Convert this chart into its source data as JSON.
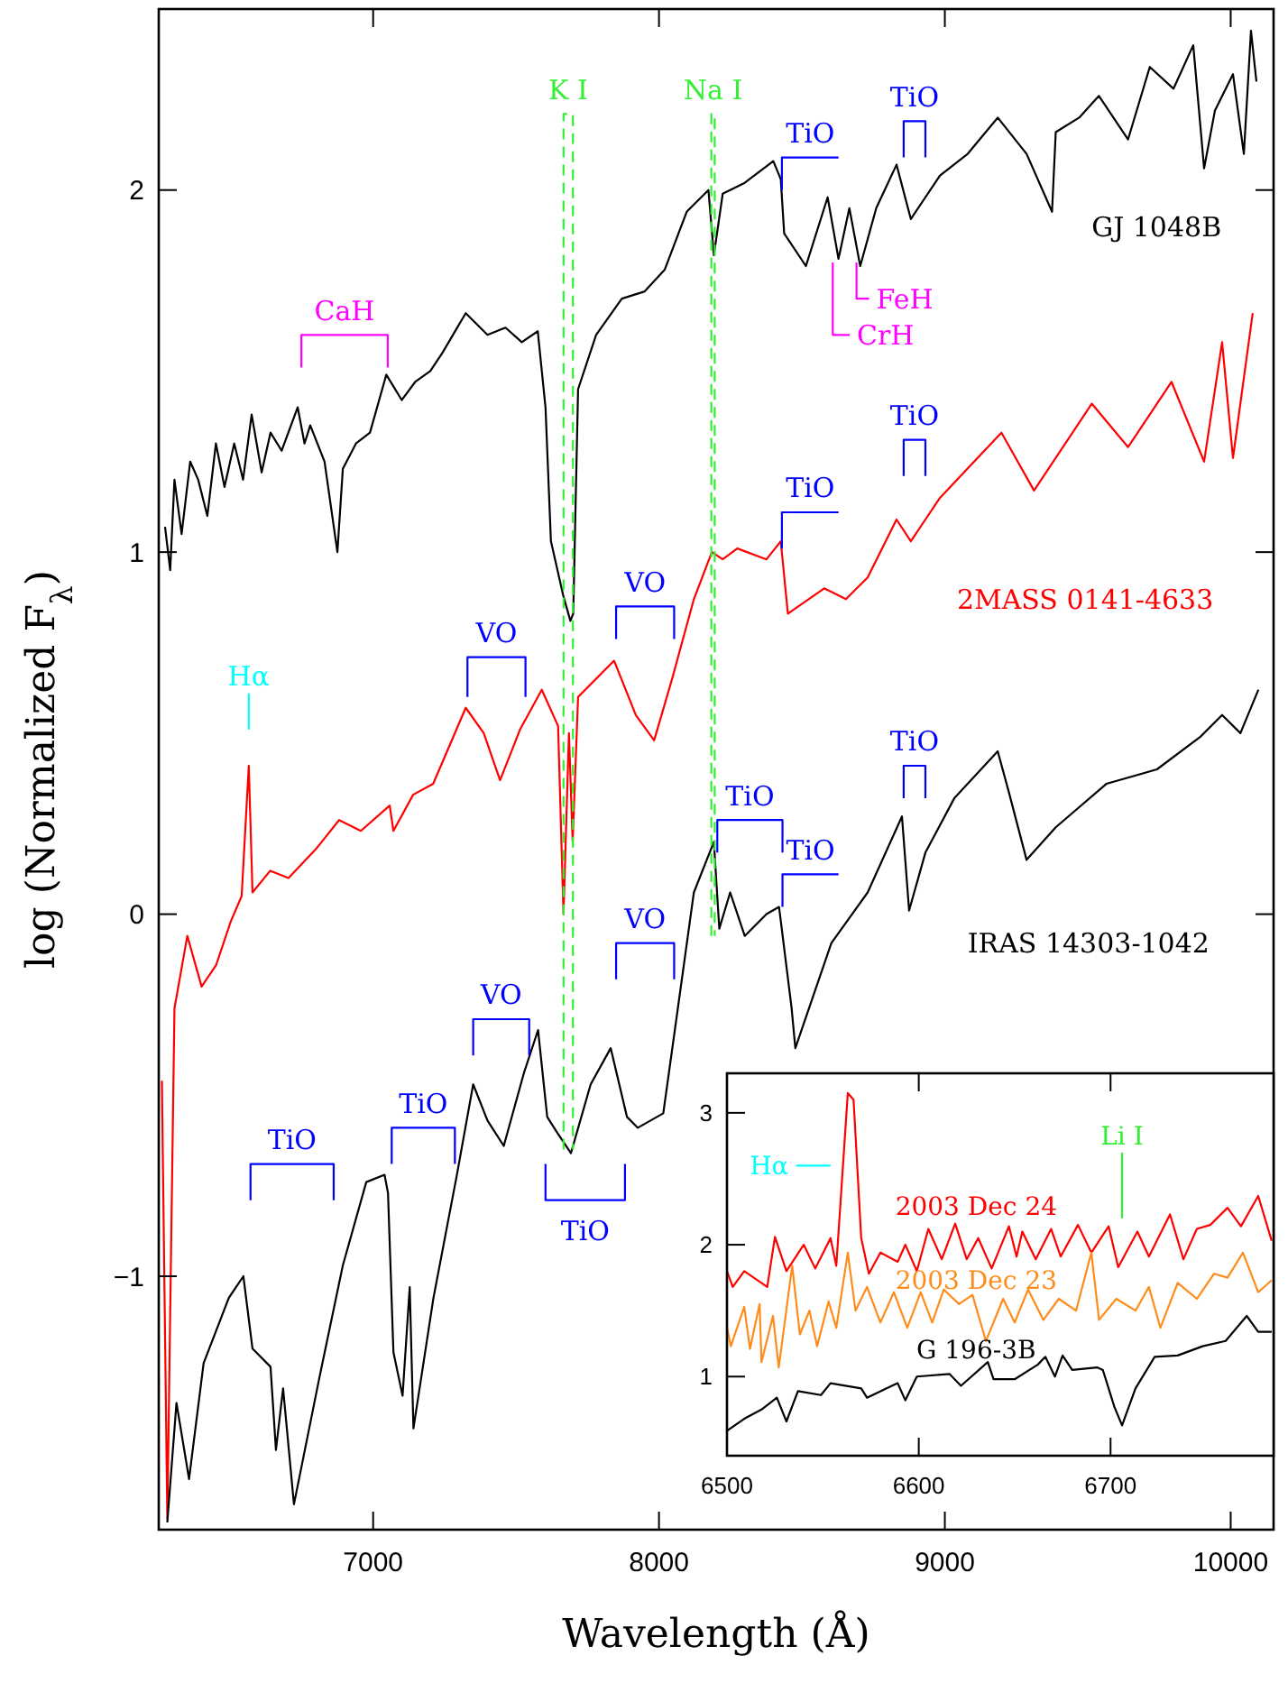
{
  "chart_data": [
    {
      "type": "line",
      "xlabel": "Wavelength (Å)",
      "ylabel": "log (Normalized F$_{λ}$)",
      "xlim": [
        6250,
        10150
      ],
      "ylim": [
        -1.7,
        2.5
      ],
      "xticks": [
        7000,
        8000,
        9000,
        10000
      ],
      "yticks": [
        -1,
        0,
        1,
        2
      ],
      "series": [
        {
          "name": "GJ 1048B",
          "color": "#000000",
          "x": [
            6272,
            6290,
            6305,
            6330,
            6360,
            6388,
            6420,
            6450,
            6480,
            6514,
            6545,
            6575,
            6610,
            6641,
            6680,
            6736,
            6760,
            6780,
            6830,
            6875,
            6894,
            6940,
            6989,
            7046,
            7100,
            7147,
            7200,
            7242,
            7324,
            7400,
            7463,
            7520,
            7576,
            7603,
            7622,
            7645,
            7665,
            7690,
            7700,
            7717,
            7780,
            7870,
            7950,
            8020,
            8097,
            8173,
            8192,
            8223,
            8300,
            8400,
            8426,
            8438,
            8514,
            8590,
            8628,
            8666,
            8704,
            8760,
            8831,
            8881,
            8983,
            9080,
            9185,
            9286,
            9375,
            9388,
            9470,
            9539,
            9641,
            9717,
            9800,
            9869,
            9907,
            9945,
            10008,
            10046,
            10071,
            10090
          ],
          "values": [
            1.07,
            0.95,
            1.2,
            1.05,
            1.25,
            1.2,
            1.1,
            1.3,
            1.18,
            1.3,
            1.2,
            1.38,
            1.22,
            1.33,
            1.28,
            1.4,
            1.3,
            1.35,
            1.25,
            1.0,
            1.23,
            1.3,
            1.33,
            1.49,
            1.42,
            1.47,
            1.5,
            1.55,
            1.66,
            1.6,
            1.62,
            1.58,
            1.61,
            1.4,
            1.03,
            0.95,
            0.88,
            0.81,
            0.83,
            1.45,
            1.6,
            1.7,
            1.72,
            1.78,
            1.94,
            2.0,
            1.82,
            1.99,
            2.02,
            2.08,
            2.03,
            1.88,
            1.79,
            1.98,
            1.81,
            1.95,
            1.79,
            1.95,
            2.07,
            1.92,
            2.04,
            2.1,
            2.2,
            2.1,
            1.94,
            2.16,
            2.2,
            2.26,
            2.14,
            2.34,
            2.28,
            2.4,
            2.06,
            2.22,
            2.32,
            2.1,
            2.44,
            2.3
          ]
        },
        {
          "name": "2MASS 0141-4633",
          "color": "#ff0000",
          "x": [
            6261,
            6280,
            6305,
            6350,
            6400,
            6451,
            6502,
            6540,
            6565,
            6578,
            6640,
            6704,
            6800,
            6881,
            6957,
            7058,
            7071,
            7140,
            7210,
            7324,
            7387,
            7444,
            7514,
            7590,
            7647,
            7666,
            7685,
            7698,
            7717,
            7843,
            7919,
            7983,
            8046,
            8122,
            8185,
            8223,
            8274,
            8376,
            8426,
            8451,
            8578,
            8654,
            8730,
            8831,
            8881,
            8983,
            9198,
            9312,
            9514,
            9641,
            9793,
            9907,
            9970,
            10008,
            10077
          ],
          "values": [
            -0.46,
            -1.67,
            -0.26,
            -0.06,
            -0.2,
            -0.14,
            -0.02,
            0.05,
            0.41,
            0.06,
            0.12,
            0.1,
            0.18,
            0.26,
            0.23,
            0.3,
            0.23,
            0.33,
            0.36,
            0.57,
            0.5,
            0.37,
            0.51,
            0.62,
            0.52,
            0.0,
            0.5,
            0.2,
            0.6,
            0.7,
            0.55,
            0.48,
            0.65,
            0.87,
            1.0,
            0.98,
            1.01,
            0.98,
            1.03,
            0.83,
            0.9,
            0.87,
            0.93,
            1.09,
            1.03,
            1.15,
            1.33,
            1.17,
            1.41,
            1.29,
            1.47,
            1.25,
            1.58,
            1.26,
            1.66
          ]
        },
        {
          "name": "IRAS 14303-1042",
          "color": "#000000",
          "x": [
            6280,
            6312,
            6356,
            6407,
            6495,
            6546,
            6578,
            6641,
            6660,
            6685,
            6723,
            6812,
            6894,
            6976,
            7040,
            7052,
            7071,
            7103,
            7128,
            7141,
            7211,
            7293,
            7350,
            7400,
            7457,
            7527,
            7577,
            7609,
            7641,
            7692,
            7761,
            7831,
            7888,
            7926,
            8015,
            8059,
            8122,
            8192,
            8211,
            8249,
            8300,
            8376,
            8420,
            8464,
            8477,
            8603,
            8730,
            8850,
            8875,
            8932,
            9033,
            9185,
            9223,
            9286,
            9388,
            9565,
            9742,
            9894,
            9970,
            10034,
            10097
          ],
          "values": [
            -1.68,
            -1.35,
            -1.56,
            -1.24,
            -1.06,
            -1.0,
            -1.2,
            -1.25,
            -1.48,
            -1.31,
            -1.63,
            -1.28,
            -0.97,
            -0.74,
            -0.72,
            -0.77,
            -1.21,
            -1.33,
            -1.03,
            -1.42,
            -1.06,
            -0.72,
            -0.47,
            -0.57,
            -0.64,
            -0.44,
            -0.32,
            -0.56,
            -0.6,
            -0.66,
            -0.47,
            -0.37,
            -0.56,
            -0.59,
            -0.55,
            -0.3,
            0.06,
            0.2,
            -0.04,
            0.06,
            -0.06,
            0.0,
            0.02,
            -0.26,
            -0.37,
            -0.08,
            0.06,
            0.27,
            0.01,
            0.17,
            0.32,
            0.45,
            0.34,
            0.15,
            0.24,
            0.36,
            0.4,
            0.49,
            0.55,
            0.5,
            0.62
          ]
        },
        {
          "name": "CaH",
          "color": "#ff00ff",
          "x": [
            6749,
            6749,
            7051,
            7051
          ],
          "values": [
            1.51,
            1.6,
            1.6,
            1.51
          ]
        },
        {
          "name": "TiO",
          "color": "#0000ff",
          "x": [
            8430,
            8430,
            8628
          ],
          "values": [
            2.0,
            2.09,
            2.09
          ]
        },
        {
          "name": "TiO",
          "color": "#0000ff",
          "x": [
            8856,
            8856,
            8932,
            8932
          ],
          "values": [
            2.09,
            2.19,
            2.19,
            2.09
          ]
        },
        {
          "name": "CrH",
          "color": "#ff00ff",
          "x": [
            8608,
            8608,
            8667
          ],
          "values": [
            1.8,
            1.6,
            1.6
          ]
        },
        {
          "name": "FeH",
          "color": "#ff00ff",
          "x": [
            8691,
            8691,
            8735
          ],
          "values": [
            1.8,
            1.7,
            1.7
          ]
        },
        {
          "name": "TiO",
          "color": "#0000ff",
          "x": [
            8430,
            8430,
            8628
          ],
          "values": [
            1.01,
            1.11,
            1.11
          ]
        },
        {
          "name": "TiO",
          "color": "#0000ff",
          "x": [
            8856,
            8856,
            8932,
            8932
          ],
          "values": [
            1.21,
            1.31,
            1.31,
            1.21
          ]
        },
        {
          "name": "VO",
          "color": "#0000ff",
          "x": [
            7850,
            7850,
            8053,
            8053
          ],
          "values": [
            0.76,
            0.85,
            0.85,
            0.76
          ]
        },
        {
          "name": "VO",
          "color": "#0000ff",
          "x": [
            7330,
            7330,
            7533,
            7533
          ],
          "values": [
            0.6,
            0.71,
            0.71,
            0.6
          ]
        },
        {
          "name": "Hα",
          "color": "#00ffff",
          "x": [
            6565,
            6565
          ],
          "values": [
            0.51,
            0.61
          ]
        },
        {
          "name": "TiO",
          "color": "#0000ff",
          "x": [
            8204,
            8204,
            8432,
            8432
          ],
          "values": [
            0.17,
            0.26,
            0.26,
            0.17
          ]
        },
        {
          "name": "TiO",
          "color": "#0000ff",
          "x": [
            8432,
            8432,
            8628
          ],
          "values": [
            0.02,
            0.11,
            0.11
          ]
        },
        {
          "name": "TiO",
          "color": "#0000ff",
          "x": [
            8856,
            8856,
            8932,
            8932
          ],
          "values": [
            0.32,
            0.41,
            0.41,
            0.32
          ]
        },
        {
          "name": "VO",
          "color": "#0000ff",
          "x": [
            7850,
            7850,
            8053,
            8053
          ],
          "values": [
            -0.18,
            -0.08,
            -0.08,
            -0.18
          ]
        },
        {
          "name": "VO",
          "color": "#0000ff",
          "x": [
            7350,
            7350,
            7546,
            7546
          ],
          "values": [
            -0.39,
            -0.29,
            -0.29,
            -0.39
          ]
        },
        {
          "name": "TiO",
          "color": "#0000ff",
          "x": [
            6571,
            6571,
            6862,
            6862
          ],
          "values": [
            -0.79,
            -0.69,
            -0.69,
            -0.79
          ]
        },
        {
          "name": "TiO",
          "color": "#0000ff",
          "x": [
            7065,
            7065,
            7286,
            7286
          ],
          "values": [
            -0.69,
            -0.59,
            -0.59,
            -0.69
          ]
        },
        {
          "name": "TiO",
          "color": "#0000ff",
          "x": [
            7603,
            7603,
            7881,
            7881
          ],
          "values": [
            -0.69,
            -0.79,
            -0.79,
            -0.69
          ]
        },
        {
          "name": "K I",
          "color": "#33ee33",
          "line_style": "dashed",
          "x": [
            7666,
            7666,
            7699,
            7699
          ],
          "values": [
            -0.65,
            2.21,
            2.21,
            -0.65
          ]
        },
        {
          "name": "Na I",
          "color": "#33ee33",
          "line_style": "dashed",
          "x": [
            8183,
            8183,
            8195,
            8195
          ],
          "values": [
            -0.06,
            2.21,
            2.21,
            -0.06
          ]
        }
      ]
    },
    {
      "type": "line",
      "xlim": [
        6500,
        6785
      ],
      "ylim": [
        0.4,
        3.3
      ],
      "xticks": [
        6500,
        6600,
        6700
      ],
      "yticks": [
        1,
        2,
        3
      ],
      "series": [
        {
          "name": "2003 Dec 24",
          "color": "#ff0000",
          "x": [
            6500,
            6503,
            6509,
            6521,
            6525,
            6531,
            6540,
            6546,
            6554,
            6557,
            6563,
            6566,
            6570,
            6574,
            6580,
            6589,
            6593,
            6599,
            6605,
            6612,
            6619,
            6625,
            6631,
            6638,
            6647,
            6651,
            6654,
            6661,
            6669,
            6674,
            6683,
            6690,
            6699,
            6704,
            6714,
            6720,
            6731,
            6738,
            6745,
            6752,
            6761,
            6768,
            6777,
            6784
          ],
          "values": [
            1.8,
            1.68,
            1.8,
            1.68,
            2.06,
            1.8,
            2.0,
            1.82,
            2.05,
            1.84,
            3.15,
            3.1,
            2.05,
            1.78,
            1.94,
            1.87,
            2.0,
            1.8,
            2.12,
            1.89,
            2.16,
            1.89,
            2.05,
            1.82,
            2.14,
            1.91,
            2.1,
            1.89,
            2.12,
            1.91,
            2.15,
            1.94,
            2.14,
            1.83,
            2.1,
            1.91,
            2.23,
            1.89,
            2.12,
            2.15,
            2.28,
            2.14,
            2.37,
            2.03
          ]
        },
        {
          "name": "2003 Dec 23",
          "color": "#ff8c1a",
          "x": [
            6500,
            6502,
            6509,
            6512,
            6517,
            6518,
            6524,
            6527,
            6534,
            6538,
            6543,
            6547,
            6553,
            6557,
            6563,
            6567,
            6573,
            6580,
            6587,
            6594,
            6601,
            6607,
            6613,
            6621,
            6628,
            6635,
            6644,
            6650,
            6657,
            6665,
            6673,
            6682,
            6690,
            6694,
            6703,
            6713,
            6720,
            6726,
            6735,
            6745,
            6754,
            6761,
            6769,
            6777,
            6784
          ],
          "values": [
            1.37,
            1.23,
            1.53,
            1.21,
            1.55,
            1.11,
            1.46,
            1.07,
            1.84,
            1.32,
            1.5,
            1.23,
            1.57,
            1.37,
            1.94,
            1.5,
            1.68,
            1.41,
            1.64,
            1.37,
            1.64,
            1.41,
            1.66,
            1.55,
            1.62,
            1.27,
            1.59,
            1.41,
            1.66,
            1.43,
            1.59,
            1.5,
            1.94,
            1.43,
            1.59,
            1.5,
            1.68,
            1.37,
            1.71,
            1.59,
            1.78,
            1.75,
            1.94,
            1.64,
            1.73
          ]
        },
        {
          "name": "G 196-3B",
          "color": "#000000",
          "x": [
            6500,
            6509,
            6518,
            6526,
            6531,
            6537,
            6549,
            6554,
            6570,
            6573,
            6583,
            6589,
            6593,
            6599,
            6616,
            6622,
            6636,
            6639,
            6650,
            6662,
            6666,
            6671,
            6675,
            6680,
            6693,
            6696,
            6702,
            6706,
            6713,
            6723,
            6735,
            6748,
            6760,
            6771,
            6777,
            6784
          ],
          "values": [
            0.59,
            0.68,
            0.75,
            0.84,
            0.66,
            0.89,
            0.86,
            0.95,
            0.91,
            0.84,
            0.91,
            0.95,
            0.82,
            1.0,
            1.02,
            0.93,
            1.11,
            0.98,
            0.98,
            1.09,
            1.15,
            1.0,
            1.16,
            1.05,
            1.07,
            1.05,
            0.77,
            0.63,
            0.91,
            1.15,
            1.16,
            1.23,
            1.27,
            1.46,
            1.34,
            1.34
          ]
        },
        {
          "name": "Hα",
          "color": "#00ffff",
          "x": [
            6536,
            6554
          ],
          "values": [
            2.6,
            2.6
          ]
        },
        {
          "name": "Li I",
          "color": "#33ee33",
          "x": [
            6706,
            6706
          ],
          "values": [
            2.2,
            2.7
          ]
        }
      ]
    }
  ]
}
